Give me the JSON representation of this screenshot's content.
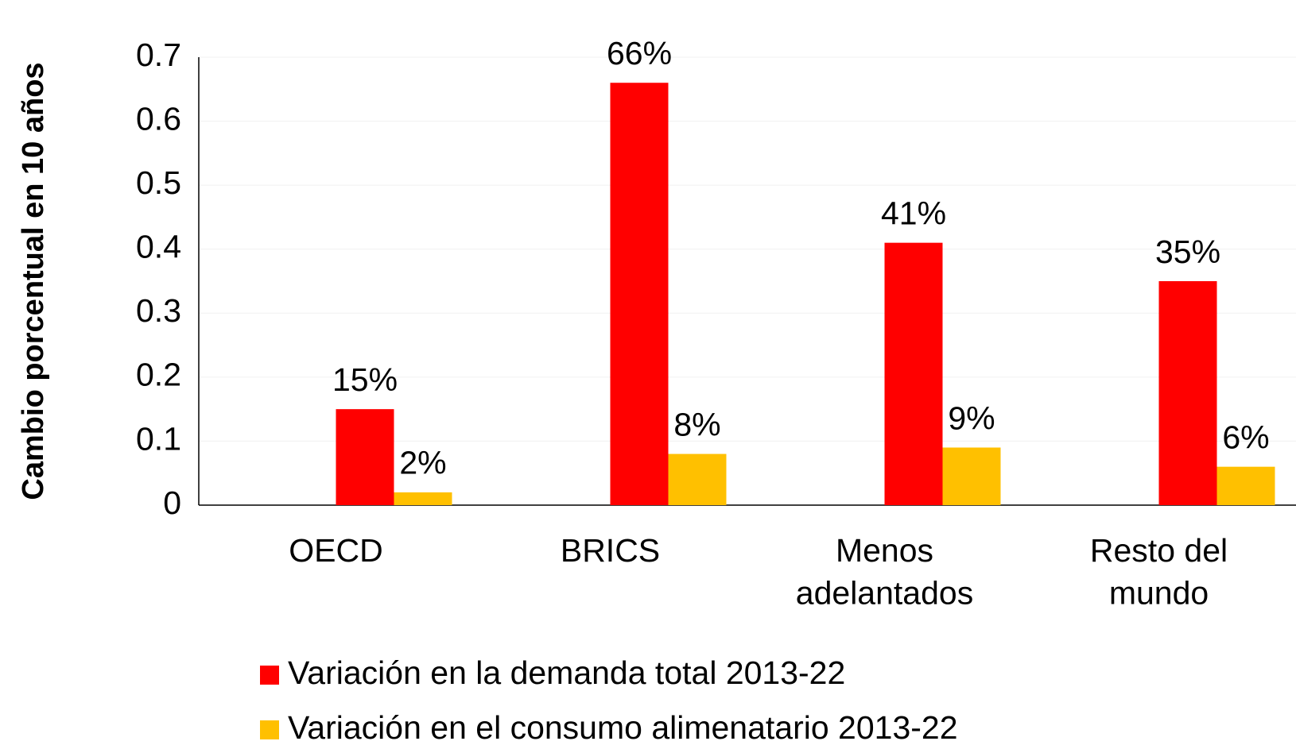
{
  "chart_data": {
    "type": "bar",
    "y_label": "Cambio porcentual en 10 años",
    "categories": [
      "OECD",
      "BRICS",
      "Menos\nadelantados",
      "Resto del\nmundo"
    ],
    "series": [
      {
        "name": "Variación en la demanda total 2013-22",
        "color": "#ff0000",
        "values": [
          0.15,
          0.66,
          0.41,
          0.35
        ],
        "value_labels": [
          "15%",
          "66%",
          "41%",
          "35%"
        ]
      },
      {
        "name": "Variación en el consumo alimenatario 2013-22",
        "color": "#ffc000",
        "values": [
          0.02,
          0.08,
          0.09,
          0.06
        ],
        "value_labels": [
          "2%",
          "8%",
          "9%",
          "6%"
        ]
      }
    ],
    "ylim": [
      0,
      0.7
    ],
    "yticks": [
      0,
      0.1,
      0.2,
      0.3,
      0.4,
      0.5,
      0.6,
      0.7
    ],
    "grid": true,
    "legend": "bottom"
  }
}
